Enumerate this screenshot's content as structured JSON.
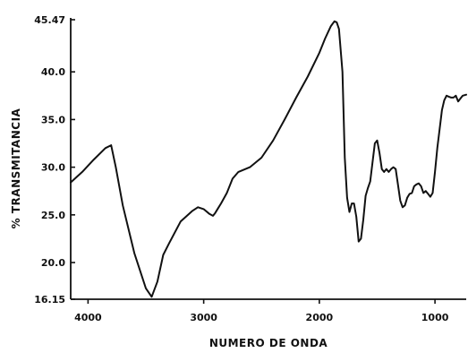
{
  "chart_data": {
    "type": "line",
    "title": "",
    "xlabel": "NUMERO DE ONDA",
    "ylabel": "% TRANSMITANCIA",
    "xlim": [
      4150,
      730
    ],
    "ylim": [
      16.15,
      45.47
    ],
    "x_reversed": true,
    "grid": false,
    "legend": "none",
    "x_ticks": [
      4000,
      3000,
      2000,
      1000
    ],
    "x_tick_labels": [
      "4000",
      "3000",
      "2000",
      "1000"
    ],
    "y_ticks": [
      16.15,
      20.0,
      25.0,
      30.0,
      35.0,
      40.0,
      45.47
    ],
    "y_tick_labels": [
      "16.15",
      "20.0",
      "25.0",
      "30.0",
      "35.0",
      "40.0",
      "45.47"
    ],
    "line_color": "#111111",
    "series": [
      {
        "x": [
          4150,
          4050,
          3950,
          3850,
          3800,
          3760,
          3700,
          3600,
          3500,
          3450,
          3400,
          3350,
          3300,
          3200,
          3100,
          3050,
          3000,
          2950,
          2920,
          2900,
          2870,
          2850,
          2800,
          2750,
          2700,
          2600,
          2500,
          2400,
          2300,
          2200,
          2100,
          2000,
          1950,
          1900,
          1870,
          1850,
          1830,
          1800,
          1780,
          1760,
          1740,
          1720,
          1700,
          1680,
          1660,
          1640,
          1620,
          1600,
          1580,
          1560,
          1540,
          1520,
          1500,
          1480,
          1460,
          1440,
          1420,
          1400,
          1380,
          1360,
          1340,
          1320,
          1300,
          1280,
          1260,
          1240,
          1220,
          1200,
          1180,
          1160,
          1140,
          1120,
          1100,
          1080,
          1060,
          1040,
          1020,
          1000,
          980,
          960,
          940,
          920,
          900,
          880,
          860,
          840,
          820,
          800,
          780,
          760,
          730
        ],
        "y": [
          28.4,
          29.5,
          30.8,
          32.0,
          32.3,
          30.0,
          26.0,
          21.0,
          17.3,
          16.4,
          18.0,
          20.8,
          22.0,
          24.3,
          25.4,
          25.8,
          25.6,
          25.1,
          24.9,
          25.2,
          25.8,
          26.2,
          27.3,
          28.8,
          29.5,
          30.0,
          31.0,
          32.8,
          35.0,
          37.3,
          39.5,
          42.0,
          43.5,
          44.8,
          45.3,
          45.2,
          44.5,
          40.0,
          31.0,
          26.8,
          25.3,
          26.2,
          26.2,
          24.8,
          22.2,
          22.5,
          24.5,
          27.0,
          27.8,
          28.5,
          30.5,
          32.5,
          32.8,
          31.5,
          29.8,
          29.5,
          29.8,
          29.5,
          29.8,
          30.0,
          29.8,
          28.2,
          26.5,
          25.8,
          26.0,
          26.8,
          27.2,
          27.3,
          28.0,
          28.2,
          28.3,
          28.0,
          27.3,
          27.5,
          27.2,
          26.9,
          27.3,
          29.5,
          32.0,
          34.0,
          36.0,
          37.0,
          37.5,
          37.4,
          37.3,
          37.3,
          37.5,
          36.9,
          37.2,
          37.5,
          37.6
        ]
      }
    ]
  }
}
